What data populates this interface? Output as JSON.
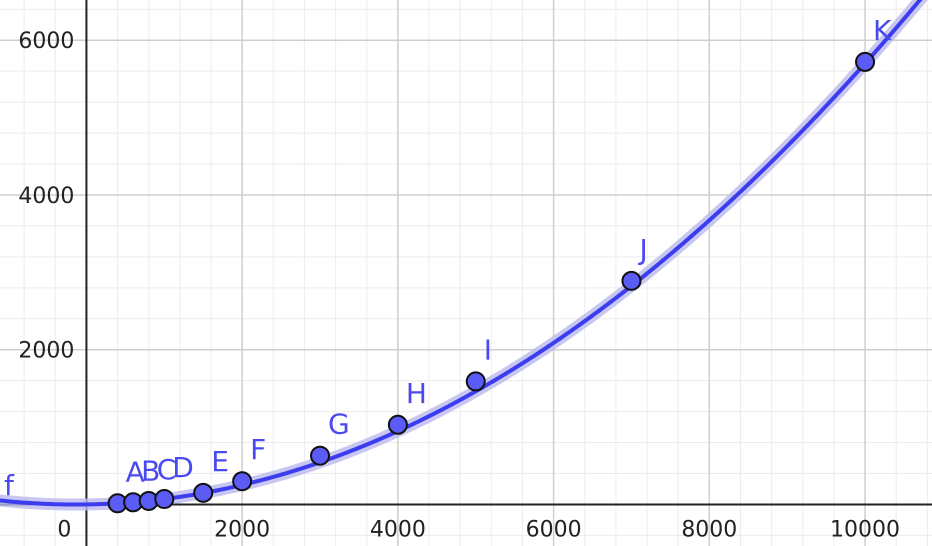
{
  "colors": {
    "curve": "#3d3df0",
    "curve_halo": "#b9b9ee",
    "point_fill": "#5b5bf5",
    "point_stroke": "#111111",
    "label": "#4a4af0",
    "grid_major": "#cfcfcf",
    "grid_minor": "#ececec",
    "axis": "#222222"
  },
  "chart_data": {
    "type": "scatter",
    "title": "",
    "xlabel": "",
    "ylabel": "",
    "xlim": [
      -1110,
      10860
    ],
    "ylim": [
      -537,
      6520
    ],
    "grid": true,
    "x_ticks": [
      0,
      2000,
      4000,
      6000,
      8000,
      10000
    ],
    "x_tick_labels": [
      "0",
      "2000",
      "4000",
      "6000",
      "8000",
      "10000"
    ],
    "y_ticks": [
      2000,
      4000,
      6000
    ],
    "y_tick_labels": [
      "2000",
      "4000",
      "6000"
    ],
    "curve": {
      "label": "f",
      "equation_form": "y = a*x^2 + b*x + c",
      "coefficients": {
        "a": 5.55e-05,
        "b": 0.015,
        "c": 0
      }
    },
    "points": [
      {
        "label": "A",
        "x": 400,
        "y": 15
      },
      {
        "label": "B",
        "x": 600,
        "y": 28
      },
      {
        "label": "C",
        "x": 800,
        "y": 45
      },
      {
        "label": "D",
        "x": 1000,
        "y": 70
      },
      {
        "label": "E",
        "x": 1500,
        "y": 150
      },
      {
        "label": "F",
        "x": 2000,
        "y": 300
      },
      {
        "label": "G",
        "x": 3000,
        "y": 630
      },
      {
        "label": "H",
        "x": 4000,
        "y": 1030
      },
      {
        "label": "I",
        "x": 5000,
        "y": 1590
      },
      {
        "label": "J",
        "x": 7000,
        "y": 2890
      },
      {
        "label": "K",
        "x": 10000,
        "y": 5720
      }
    ]
  }
}
